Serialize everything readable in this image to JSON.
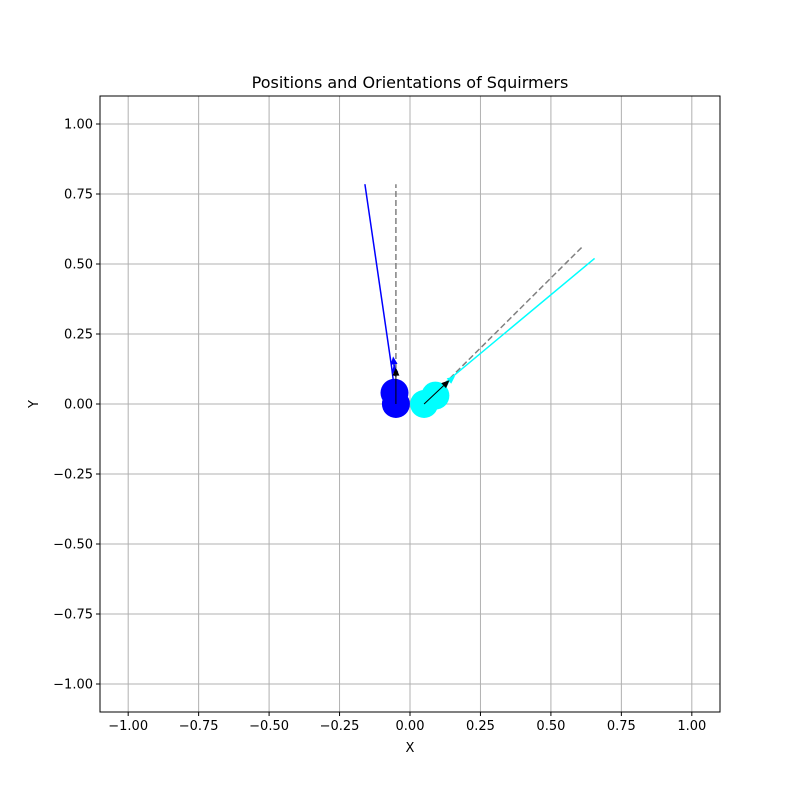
{
  "chart_data": {
    "type": "scatter",
    "title": "Positions and Orientations of Squirmers",
    "xlabel": "X",
    "ylabel": "Y",
    "xlim": [
      -1.1,
      1.1
    ],
    "ylim": [
      -1.1,
      1.1
    ],
    "grid": true,
    "legend": "none",
    "x_ticks": [
      -1.0,
      -0.75,
      -0.5,
      -0.25,
      0.0,
      0.25,
      0.5,
      0.75,
      1.0
    ],
    "y_ticks": [
      -1.0,
      -0.75,
      -0.5,
      -0.25,
      0.0,
      0.25,
      0.5,
      0.75,
      1.0
    ],
    "x_tick_labels": [
      "−1.00",
      "−0.75",
      "−0.50",
      "−0.25",
      "0.00",
      "0.25",
      "0.50",
      "0.75",
      "1.00"
    ],
    "y_tick_labels": [
      "−1.00",
      "−0.75",
      "−0.50",
      "−0.25",
      "0.00",
      "0.25",
      "0.50",
      "0.75",
      "1.00"
    ],
    "series": [
      {
        "color": "#0000ff",
        "positions": [
          {
            "x": -0.05,
            "y": 0.0
          },
          {
            "x": -0.055,
            "y": 0.04
          }
        ],
        "trajectory": [
          [
            -0.05,
            0.0
          ],
          [
            -0.055,
            0.04
          ],
          [
            -0.06,
            0.09
          ],
          [
            -0.065,
            0.13
          ],
          [
            -0.16,
            0.785
          ]
        ],
        "orientation_arrows": [
          {
            "x": -0.055,
            "y": 0.13,
            "dx": -0.005,
            "dy": 0.04
          },
          {
            "x": -0.052,
            "y": 0.1,
            "dx": -0.005,
            "dy": 0.04
          }
        ],
        "initial_direction": {
          "from": [
            -0.05,
            0.0
          ],
          "to": [
            -0.05,
            0.785
          ]
        }
      },
      {
        "color": "#00ffff",
        "positions": [
          {
            "x": 0.05,
            "y": 0.0
          },
          {
            "x": 0.09,
            "y": 0.03
          }
        ],
        "trajectory": [
          [
            0.05,
            0.0
          ],
          [
            0.09,
            0.03
          ],
          [
            0.13,
            0.08
          ],
          [
            0.655,
            0.52
          ]
        ],
        "orientation_arrows": [
          {
            "x": 0.11,
            "y": 0.055,
            "dx": 0.03,
            "dy": 0.025
          },
          {
            "x": 0.13,
            "y": 0.075,
            "dx": 0.03,
            "dy": 0.025
          }
        ],
        "initial_direction": {
          "from": [
            0.05,
            0.0
          ],
          "to": [
            0.61,
            0.56
          ]
        }
      }
    ],
    "velocity_arrows": [
      {
        "x": -0.05,
        "y": 0.0,
        "dx": 0.0,
        "dy": 0.13
      },
      {
        "x": 0.05,
        "y": 0.0,
        "dx": 0.09,
        "dy": 0.085
      }
    ],
    "colors": {
      "grid": "#b0b0b0",
      "dashed": "#808080",
      "arrow": "#000000"
    }
  }
}
